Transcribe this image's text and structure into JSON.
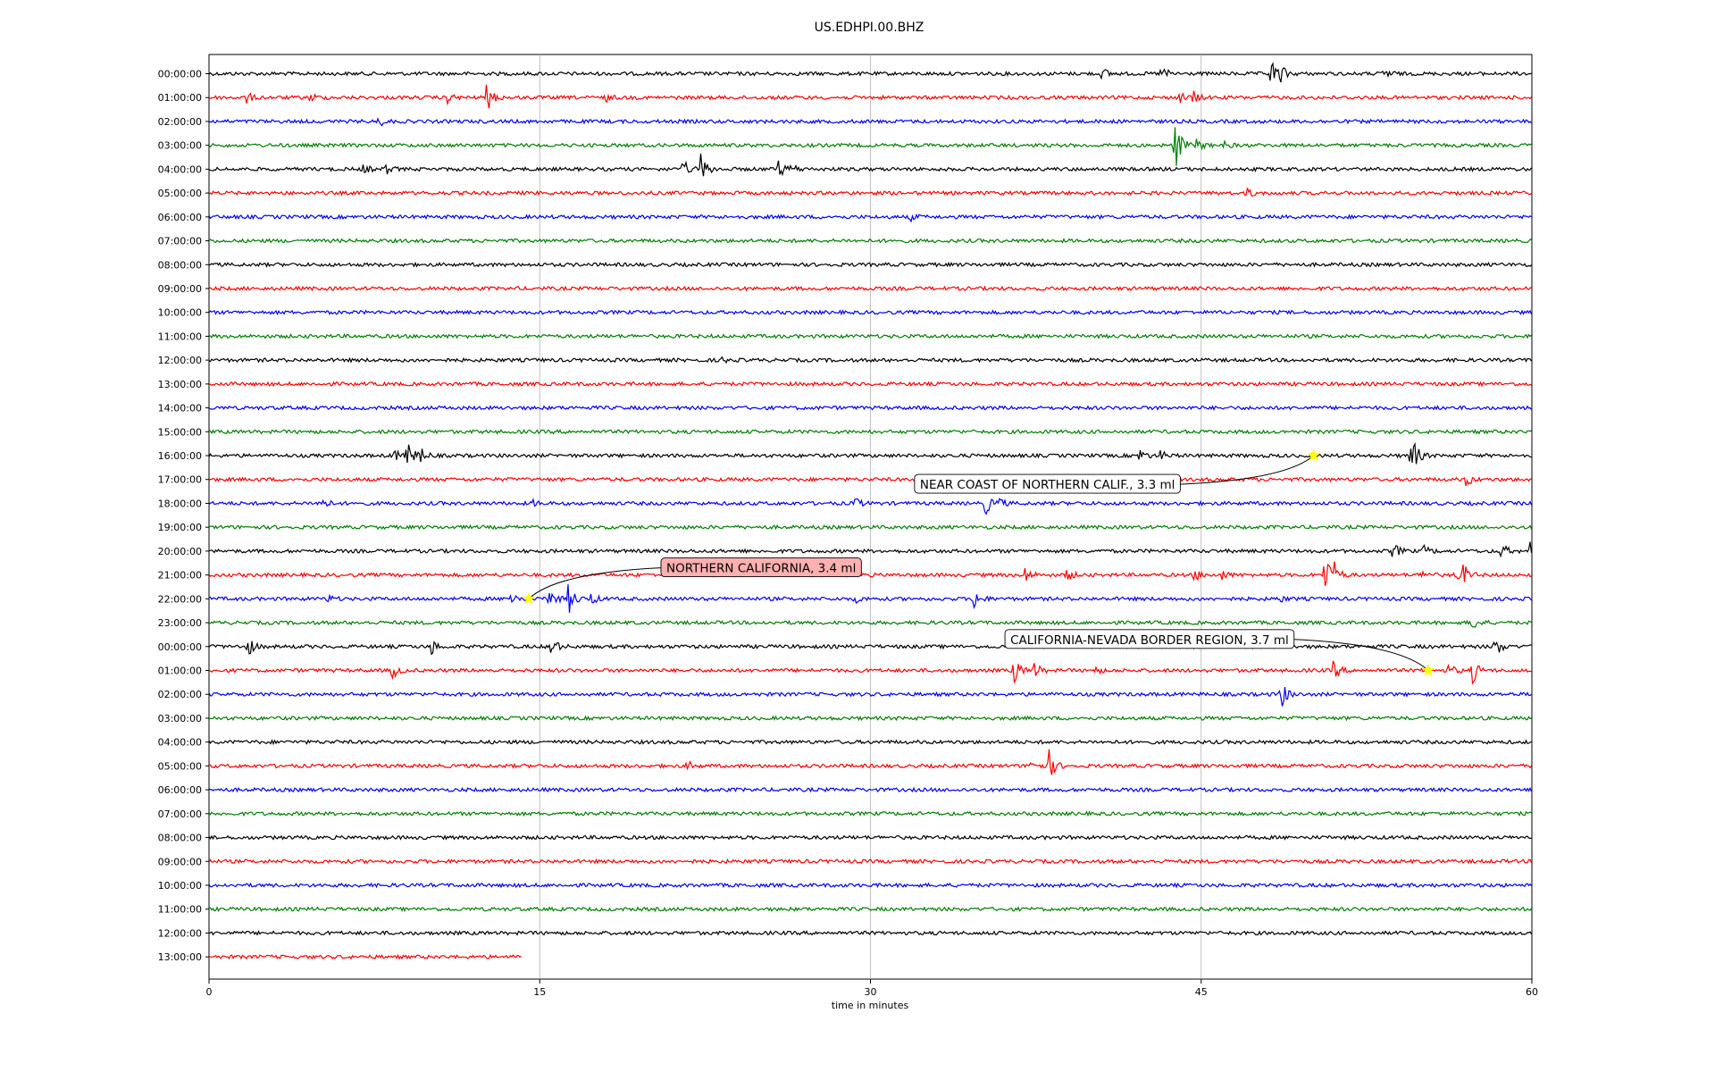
{
  "chart_data": {
    "type": "line",
    "title": "US.EDHPI.00.BHZ",
    "xlabel": "time in minutes",
    "ylabel": "",
    "xlim": [
      0,
      60
    ],
    "x_ticks": [
      "0",
      "15",
      "30",
      "45",
      "60"
    ],
    "grid": "vertical",
    "trace_colors": [
      "#000000",
      "#ff0000",
      "#0000ff",
      "#008000"
    ],
    "rows": [
      {
        "label": "00:00:00",
        "events": [
          {
            "t": 40.5,
            "a": 7
          },
          {
            "t": 43.2,
            "a": 9
          },
          {
            "t": 48.1,
            "a": 22
          },
          {
            "t": 48.6,
            "a": 8
          },
          {
            "t": 53.3,
            "a": 8
          }
        ]
      },
      {
        "label": "01:00:00",
        "events": [
          {
            "t": 1.7,
            "a": 6
          },
          {
            "t": 4.6,
            "a": 5
          },
          {
            "t": 10.8,
            "a": 6
          },
          {
            "t": 12.6,
            "a": 17
          },
          {
            "t": 18.0,
            "a": 4
          },
          {
            "t": 44.0,
            "a": 6
          },
          {
            "t": 44.6,
            "a": 8
          }
        ]
      },
      {
        "label": "02:00:00",
        "events": [
          {
            "t": 7.7,
            "a": 5
          }
        ]
      },
      {
        "label": "03:00:00",
        "events": [
          {
            "t": 43.8,
            "a": 33
          },
          {
            "t": 44.8,
            "a": 7
          },
          {
            "t": 46.0,
            "a": 4
          }
        ]
      },
      {
        "label": "04:00:00",
        "events": [
          {
            "t": 7.0,
            "a": 5
          },
          {
            "t": 8.0,
            "a": 6
          },
          {
            "t": 21.5,
            "a": 10
          },
          {
            "t": 22.3,
            "a": 18
          },
          {
            "t": 25.8,
            "a": 11
          },
          {
            "t": 26.4,
            "a": 6
          }
        ]
      },
      {
        "label": "05:00:00",
        "events": [
          {
            "t": 47.1,
            "a": 5
          }
        ]
      },
      {
        "label": "06:00:00",
        "events": [
          {
            "t": 31.8,
            "a": 4
          }
        ]
      },
      {
        "label": "07:00:00",
        "events": []
      },
      {
        "label": "08:00:00",
        "events": []
      },
      {
        "label": "09:00:00",
        "events": []
      },
      {
        "label": "10:00:00",
        "events": []
      },
      {
        "label": "11:00:00",
        "events": []
      },
      {
        "label": "12:00:00",
        "events": [
          {
            "t": 23.3,
            "a": 3
          }
        ]
      },
      {
        "label": "13:00:00",
        "events": []
      },
      {
        "label": "14:00:00",
        "events": []
      },
      {
        "label": "15:00:00",
        "events": []
      },
      {
        "label": "16:00:00",
        "events": [
          {
            "t": 8.3,
            "a": 9
          },
          {
            "t": 8.9,
            "a": 26
          },
          {
            "t": 9.6,
            "a": 9
          },
          {
            "t": 42.2,
            "a": 8
          },
          {
            "t": 43.1,
            "a": 6
          },
          {
            "t": 54.5,
            "a": 30
          }
        ]
      },
      {
        "label": "17:00:00",
        "events": [
          {
            "t": 57.0,
            "a": 8
          }
        ]
      },
      {
        "label": "18:00:00",
        "events": [
          {
            "t": 5.0,
            "a": 12
          },
          {
            "t": 14.7,
            "a": 3
          },
          {
            "t": 29.2,
            "a": 9
          },
          {
            "t": 35.2,
            "a": 13
          },
          {
            "t": 35.8,
            "a": 6
          }
        ]
      },
      {
        "label": "19:00:00",
        "events": []
      },
      {
        "label": "20:00:00",
        "events": [
          {
            "t": 53.7,
            "a": 10
          },
          {
            "t": 55.1,
            "a": 6
          },
          {
            "t": 58.6,
            "a": 9
          },
          {
            "t": 59.9,
            "a": 9
          }
        ]
      },
      {
        "label": "21:00:00",
        "events": [
          {
            "t": 37.0,
            "a": 9
          },
          {
            "t": 38.9,
            "a": 7
          },
          {
            "t": 44.7,
            "a": 7
          },
          {
            "t": 45.9,
            "a": 6
          },
          {
            "t": 50.6,
            "a": 30
          },
          {
            "t": 51.0,
            "a": 12
          },
          {
            "t": 55.0,
            "a": 5
          },
          {
            "t": 56.5,
            "a": 6
          },
          {
            "t": 56.9,
            "a": 12
          }
        ]
      },
      {
        "label": "22:00:00",
        "events": [
          {
            "t": 5.4,
            "a": 4
          },
          {
            "t": 13.7,
            "a": 8
          },
          {
            "t": 15.4,
            "a": 14
          },
          {
            "t": 16.3,
            "a": 18
          },
          {
            "t": 17.3,
            "a": 7
          },
          {
            "t": 29.3,
            "a": 4
          },
          {
            "t": 34.7,
            "a": 12
          },
          {
            "t": 48.5,
            "a": 4
          }
        ]
      },
      {
        "label": "23:00:00",
        "events": [
          {
            "t": 57.2,
            "a": 14
          }
        ]
      },
      {
        "label": "00:00:00",
        "events": [
          {
            "t": 1.7,
            "a": 14
          },
          {
            "t": 10.0,
            "a": 12
          },
          {
            "t": 15.5,
            "a": 13
          },
          {
            "t": 58.3,
            "a": 14
          }
        ]
      },
      {
        "label": "01:00:00",
        "events": [
          {
            "t": 8.3,
            "a": 10
          },
          {
            "t": 36.5,
            "a": 17
          },
          {
            "t": 37.4,
            "a": 10
          },
          {
            "t": 40.2,
            "a": 4
          },
          {
            "t": 51.0,
            "a": 12
          },
          {
            "t": 56.2,
            "a": 8
          },
          {
            "t": 57.3,
            "a": 14
          }
        ]
      },
      {
        "label": "02:00:00",
        "events": [
          {
            "t": 48.6,
            "a": 18
          }
        ]
      },
      {
        "label": "03:00:00",
        "events": []
      },
      {
        "label": "04:00:00",
        "events": []
      },
      {
        "label": "05:00:00",
        "events": [
          {
            "t": 21.7,
            "a": 5
          },
          {
            "t": 37.2,
            "a": 12
          },
          {
            "t": 38.1,
            "a": 17
          }
        ]
      },
      {
        "label": "06:00:00",
        "events": []
      },
      {
        "label": "07:00:00",
        "events": []
      },
      {
        "label": "08:00:00",
        "events": []
      },
      {
        "label": "09:00:00",
        "events": []
      },
      {
        "label": "10:00:00",
        "events": []
      },
      {
        "label": "11:00:00",
        "events": []
      },
      {
        "label": "12:00:00",
        "events": []
      },
      {
        "label": "13:00:00",
        "end_minute": 14.2,
        "events": []
      }
    ],
    "annotations": [
      {
        "text": "NEAR COAST OF NORTHERN CALIF., 3.3 ml",
        "row": 16,
        "t": 50.1,
        "box_color": "#ffffff",
        "marker_color": "#ffff00",
        "label_t": 32.0,
        "label_row": 17.2
      },
      {
        "text": "NORTHERN CALIFORNIA, 3.4 ml",
        "row": 22,
        "t": 14.5,
        "box_color": "#ffb0b0",
        "marker_color": "#ffff00",
        "label_t": 20.5,
        "label_row": 20.7
      },
      {
        "text": "CALIFORNIA-NEVADA BORDER REGION, 3.7 ml",
        "row": 25,
        "t": 55.3,
        "box_color": "#ffffff",
        "marker_color": "#ffff00",
        "label_t": 36.1,
        "label_row": 23.7
      }
    ]
  }
}
